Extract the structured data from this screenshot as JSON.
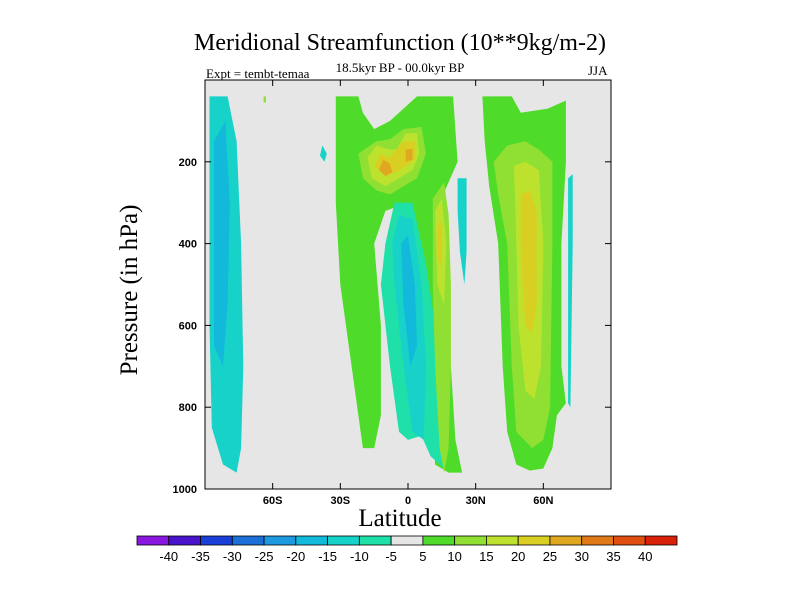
{
  "chart_data": {
    "type": "heatmap",
    "title": "Meridional Streamfunction (10**9kg/m-2)",
    "subtitle": "18.5kyr BP - 00.0kyr BP",
    "left_label": "Expt = tembt-temaa",
    "right_label": "JJA",
    "xlabel": "Latitude",
    "ylabel": "Pressure (in hPa)",
    "xlim": [
      -90,
      90
    ],
    "ylim": [
      1000,
      0
    ],
    "xticks": [
      {
        "value": -60,
        "label": "60S"
      },
      {
        "value": -30,
        "label": "30S"
      },
      {
        "value": 0,
        "label": "0"
      },
      {
        "value": 30,
        "label": "30N"
      },
      {
        "value": 60,
        "label": "60N"
      }
    ],
    "yticks": [
      {
        "value": 200,
        "label": "200"
      },
      {
        "value": 400,
        "label": "400"
      },
      {
        "value": 600,
        "label": "600"
      },
      {
        "value": 800,
        "label": "800"
      },
      {
        "value": 1000,
        "label": "1000"
      }
    ],
    "colorbar": {
      "levels": [
        -40,
        -35,
        -30,
        -25,
        -20,
        -15,
        -10,
        -5,
        5,
        10,
        15,
        20,
        25,
        30,
        35,
        40
      ],
      "colors": [
        "#8a17e0",
        "#4a14cc",
        "#1a3fd8",
        "#1b6fd6",
        "#1d99df",
        "#13b9da",
        "#17d2c8",
        "#1fe0a8",
        "#e6e6e6",
        "#4fdb2a",
        "#8fe032",
        "#bde22e",
        "#d8cf22",
        "#e0a820",
        "#e07a18",
        "#e04e10",
        "#d92008"
      ]
    },
    "regions": [
      {
        "level": -10,
        "polygon": [
          [
            -88,
            40
          ],
          [
            -80,
            40
          ],
          [
            -76,
            150
          ],
          [
            -74,
            400
          ],
          [
            -73,
            700
          ],
          [
            -74,
            900
          ],
          [
            -76,
            960
          ],
          [
            -82,
            940
          ],
          [
            -87,
            850
          ],
          [
            -88,
            600
          ]
        ]
      },
      {
        "level": -15,
        "polygon": [
          [
            -86,
            150
          ],
          [
            -81,
            100
          ],
          [
            -79,
            300
          ],
          [
            -80,
            550
          ],
          [
            -82,
            700
          ],
          [
            -86,
            650
          ]
        ]
      },
      {
        "level": -10,
        "polygon": [
          [
            -38,
            160
          ],
          [
            -36,
            180
          ],
          [
            -37,
            200
          ],
          [
            -39,
            185
          ]
        ]
      },
      {
        "level": 5,
        "polygon": [
          [
            -32,
            40
          ],
          [
            -22,
            40
          ],
          [
            -20,
            80
          ],
          [
            -15,
            120
          ],
          [
            -8,
            100
          ],
          [
            -2,
            70
          ],
          [
            4,
            40
          ],
          [
            20,
            40
          ],
          [
            22,
            200
          ],
          [
            14,
            300
          ],
          [
            15,
            500
          ],
          [
            19,
            700
          ],
          [
            21,
            880
          ],
          [
            24,
            960
          ],
          [
            18,
            960
          ],
          [
            12,
            940
          ],
          [
            9,
            700
          ],
          [
            6,
            580
          ],
          [
            4,
            440
          ],
          [
            0,
            300
          ],
          [
            -10,
            320
          ],
          [
            -15,
            400
          ],
          [
            -12,
            600
          ],
          [
            -12,
            820
          ],
          [
            -15,
            900
          ],
          [
            -20,
            900
          ],
          [
            -25,
            700
          ],
          [
            -30,
            500
          ],
          [
            -32,
            300
          ]
        ]
      },
      {
        "level": -5,
        "polygon": [
          [
            -6,
            300
          ],
          [
            2,
            300
          ],
          [
            8,
            450
          ],
          [
            12,
            600
          ],
          [
            14,
            800
          ],
          [
            16,
            950
          ],
          [
            10,
            920
          ],
          [
            6,
            870
          ],
          [
            0,
            880
          ],
          [
            -4,
            860
          ],
          [
            -8,
            700
          ],
          [
            -12,
            500
          ],
          [
            -10,
            400
          ]
        ]
      },
      {
        "level": -10,
        "polygon": [
          [
            -4,
            330
          ],
          [
            2,
            340
          ],
          [
            6,
            500
          ],
          [
            8,
            700
          ],
          [
            7,
            880
          ],
          [
            2,
            860
          ],
          [
            -2,
            700
          ],
          [
            -6,
            500
          ],
          [
            -7,
            400
          ]
        ]
      },
      {
        "level": -15,
        "polygon": [
          [
            -3,
            400
          ],
          [
            0,
            380
          ],
          [
            3,
            500
          ],
          [
            4,
            650
          ],
          [
            1,
            700
          ],
          [
            -2,
            550
          ]
        ]
      },
      {
        "level": 10,
        "polygon": [
          [
            -22,
            180
          ],
          [
            -14,
            150
          ],
          [
            -8,
            145
          ],
          [
            -2,
            120
          ],
          [
            6,
            115
          ],
          [
            8,
            180
          ],
          [
            4,
            240
          ],
          [
            -2,
            260
          ],
          [
            -8,
            280
          ],
          [
            -14,
            270
          ],
          [
            -20,
            240
          ]
        ]
      },
      {
        "level": 15,
        "polygon": [
          [
            -18,
            190
          ],
          [
            -14,
            160
          ],
          [
            -8,
            170
          ],
          [
            -5,
            170
          ],
          [
            -1,
            130
          ],
          [
            4,
            130
          ],
          [
            5,
            180
          ],
          [
            2,
            220
          ],
          [
            -4,
            240
          ],
          [
            -10,
            260
          ],
          [
            -16,
            240
          ]
        ]
      },
      {
        "level": 20,
        "polygon": [
          [
            -15,
            210
          ],
          [
            -12,
            180
          ],
          [
            -8,
            190
          ],
          [
            -2,
            150
          ],
          [
            3,
            150
          ],
          [
            3,
            195
          ],
          [
            -1,
            210
          ],
          [
            -5,
            225
          ],
          [
            -10,
            235
          ]
        ]
      },
      {
        "level": 25,
        "polygon": [
          [
            -13,
            220
          ],
          [
            -11,
            195
          ],
          [
            -8,
            205
          ],
          [
            -7,
            225
          ],
          [
            -10,
            235
          ]
        ]
      },
      {
        "level": 25,
        "polygon": [
          [
            -1,
            170
          ],
          [
            2,
            168
          ],
          [
            2,
            195
          ],
          [
            -1,
            200
          ]
        ]
      },
      {
        "level": 10,
        "polygon": [
          [
            11,
            290
          ],
          [
            16,
            250
          ],
          [
            18,
            330
          ],
          [
            19,
            500
          ],
          [
            19,
            700
          ],
          [
            18,
            900
          ],
          [
            16,
            960
          ],
          [
            14,
            900
          ],
          [
            12,
            700
          ],
          [
            11,
            500
          ]
        ]
      },
      {
        "level": 15,
        "polygon": [
          [
            12,
            320
          ],
          [
            15,
            290
          ],
          [
            17,
            400
          ],
          [
            16,
            550
          ],
          [
            13,
            500
          ]
        ]
      },
      {
        "level": 20,
        "polygon": [
          [
            13,
            360
          ],
          [
            15,
            340
          ],
          [
            15,
            460
          ],
          [
            13,
            430
          ]
        ]
      },
      {
        "level": -10,
        "polygon": [
          [
            22,
            240
          ],
          [
            26,
            240
          ],
          [
            26,
            420
          ],
          [
            25,
            500
          ],
          [
            23,
            420
          ],
          [
            22,
            320
          ]
        ]
      },
      {
        "level": 5,
        "polygon": [
          [
            33,
            40
          ],
          [
            46,
            40
          ],
          [
            50,
            80
          ],
          [
            62,
            70
          ],
          [
            70,
            50
          ],
          [
            70,
            200
          ],
          [
            68,
            400
          ],
          [
            68,
            700
          ],
          [
            70,
            790
          ],
          [
            66,
            820
          ],
          [
            64,
            900
          ],
          [
            60,
            950
          ],
          [
            54,
            955
          ],
          [
            48,
            940
          ],
          [
            44,
            860
          ],
          [
            42,
            700
          ],
          [
            40,
            400
          ],
          [
            36,
            260
          ],
          [
            34,
            150
          ]
        ]
      },
      {
        "level": 10,
        "polygon": [
          [
            38,
            200
          ],
          [
            44,
            160
          ],
          [
            52,
            150
          ],
          [
            58,
            170
          ],
          [
            64,
            200
          ],
          [
            64,
            400
          ],
          [
            63,
            800
          ],
          [
            60,
            880
          ],
          [
            55,
            900
          ],
          [
            48,
            860
          ],
          [
            46,
            700
          ],
          [
            44,
            400
          ],
          [
            40,
            280
          ]
        ]
      },
      {
        "level": 15,
        "polygon": [
          [
            47,
            210
          ],
          [
            52,
            200
          ],
          [
            58,
            220
          ],
          [
            60,
            400
          ],
          [
            59,
            700
          ],
          [
            56,
            780
          ],
          [
            52,
            760
          ],
          [
            49,
            600
          ],
          [
            48,
            400
          ]
        ]
      },
      {
        "level": 20,
        "polygon": [
          [
            50,
            280
          ],
          [
            54,
            270
          ],
          [
            57,
            320
          ],
          [
            57,
            550
          ],
          [
            55,
            620
          ],
          [
            52,
            600
          ],
          [
            50,
            420
          ]
        ]
      },
      {
        "level": -10,
        "polygon": [
          [
            71,
            240
          ],
          [
            73,
            230
          ],
          [
            73,
            400
          ],
          [
            72,
            800
          ],
          [
            71,
            790
          ],
          [
            71,
            500
          ]
        ]
      },
      {
        "level": 10,
        "polygon": [
          [
            -64,
            40
          ],
          [
            -63,
            40
          ],
          [
            -63,
            55
          ],
          [
            -64,
            55
          ]
        ]
      }
    ]
  }
}
